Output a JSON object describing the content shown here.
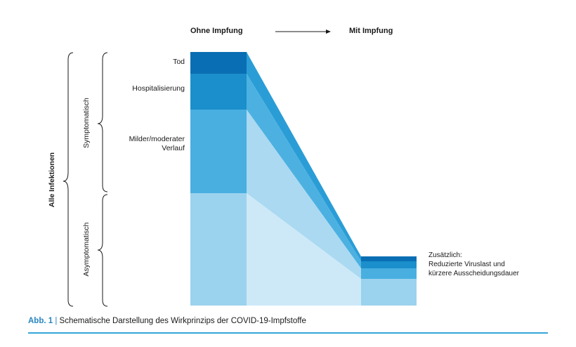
{
  "headers": {
    "without": "Ohne Impfung",
    "with": "Mit Impfung"
  },
  "categories": [
    {
      "label": "Tod",
      "color": "#0a6eb4"
    },
    {
      "label": "Hospitalisierung",
      "color": "#1b8fcb"
    },
    {
      "label": "Milder/moderater Verlauf",
      "color": "#49afe0"
    },
    {
      "label": "",
      "color": "#9bd2ee"
    }
  ],
  "side_labels": {
    "all": "Alle Infektionen",
    "symptomatic": "Symptomatisch",
    "asymptomatic": "Asymptomatisch"
  },
  "note": {
    "line1": "Zusätzlich:",
    "line2": "Reduzierte Viruslast und",
    "line3": "kürzere Ausscheidungsdauer"
  },
  "caption": {
    "abb": "Abb. 1",
    "separator": "|",
    "text": "Schematische Darstellung des Wirkprinzips der COVID-19-Impfstoffe"
  }
}
